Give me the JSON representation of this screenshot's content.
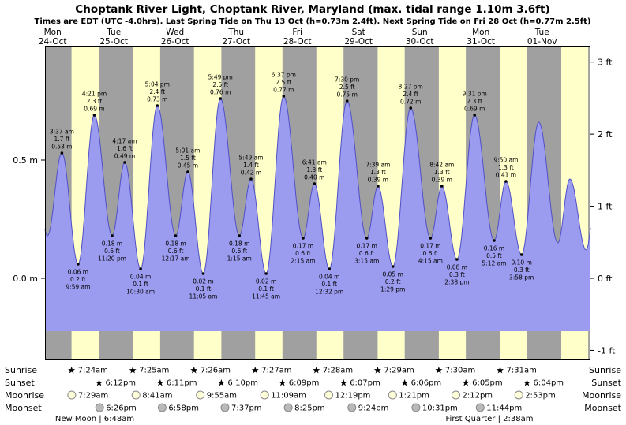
{
  "chart_data": {
    "type": "area",
    "title": "Choptank River Light, Choptank River, Maryland (max. tidal range 1.10m 3.6ft)",
    "subtitle": "Times are EDT (UTC -4.0hrs). Last Spring Tide on Thu 13 Oct (h=0.73m 2.4ft). Next Spring Tide on Fri 28 Oct (h=0.77m 2.5ft)",
    "days": [
      {
        "name": "Mon",
        "date": "24-Oct"
      },
      {
        "name": "Tue",
        "date": "25-Oct"
      },
      {
        "name": "Wed",
        "date": "26-Oct"
      },
      {
        "name": "Thu",
        "date": "27-Oct"
      },
      {
        "name": "Fri",
        "date": "28-Oct"
      },
      {
        "name": "Sat",
        "date": "29-Oct"
      },
      {
        "name": "Sun",
        "date": "30-Oct"
      },
      {
        "name": "Mon",
        "date": "31-Oct"
      },
      {
        "name": "Tue",
        "date": "01-Nov"
      }
    ],
    "y_axis_left": {
      "unit": "m",
      "ticks": [
        {
          "label": "0.5 m",
          "value_m": 0.5
        },
        {
          "label": "0.0 m",
          "value_m": 0
        }
      ]
    },
    "y_axis_right": {
      "unit": "ft",
      "ticks": [
        {
          "label": "3 ft",
          "value_ft": 3
        },
        {
          "label": "2 ft",
          "value_ft": 2
        },
        {
          "label": "1 ft",
          "value_ft": 1
        },
        {
          "label": "0 ft",
          "value_ft": 0
        },
        {
          "label": "-1 ft",
          "value_ft": -1
        }
      ]
    },
    "tide_extremes": [
      {
        "day": 0,
        "time": "3:37 am",
        "type": "high",
        "ft": "1.7 ft",
        "m": "0.53 m",
        "height_m": 0.53
      },
      {
        "day": 0,
        "time": "9:59 am",
        "type": "low",
        "ft": "0.2 ft",
        "m": "0.06 m",
        "height_m": 0.06
      },
      {
        "day": 0,
        "time": "4:21 pm",
        "type": "high",
        "ft": "2.3 ft",
        "m": "0.69 m",
        "height_m": 0.69
      },
      {
        "day": 0,
        "time": "11:20 pm",
        "type": "low",
        "ft": "0.6 ft",
        "m": "0.18 m",
        "height_m": 0.18
      },
      {
        "day": 1,
        "time": "4:17 am",
        "type": "high",
        "ft": "1.6 ft",
        "m": "0.49 m",
        "height_m": 0.49
      },
      {
        "day": 1,
        "time": "10:30 am",
        "type": "low",
        "ft": "0.1 ft",
        "m": "0.04 m",
        "height_m": 0.04
      },
      {
        "day": 1,
        "time": "5:04 pm",
        "type": "high",
        "ft": "2.4 ft",
        "m": "0.73 m",
        "height_m": 0.73
      },
      {
        "day": 2,
        "time": "12:17 am",
        "type": "low",
        "ft": "0.6 ft",
        "m": "0.18 m",
        "height_m": 0.18
      },
      {
        "day": 2,
        "time": "5:01 am",
        "type": "high",
        "ft": "1.5 ft",
        "m": "0.45 m",
        "height_m": 0.45
      },
      {
        "day": 2,
        "time": "11:05 am",
        "type": "low",
        "ft": "0.1 ft",
        "m": "0.02 m",
        "height_m": 0.02
      },
      {
        "day": 2,
        "time": "5:49 pm",
        "type": "high",
        "ft": "2.5 ft",
        "m": "0.76 m",
        "height_m": 0.76
      },
      {
        "day": 3,
        "time": "1:15 am",
        "type": "low",
        "ft": "0.6 ft",
        "m": "0.18 m",
        "height_m": 0.18
      },
      {
        "day": 3,
        "time": "5:49 am",
        "type": "high",
        "ft": "1.4 ft",
        "m": "0.42 m",
        "height_m": 0.42
      },
      {
        "day": 3,
        "time": "11:45 am",
        "type": "low",
        "ft": "0.1 ft",
        "m": "0.02 m",
        "height_m": 0.02
      },
      {
        "day": 3,
        "time": "6:37 pm",
        "type": "high",
        "ft": "2.5 ft",
        "m": "0.77 m",
        "height_m": 0.77
      },
      {
        "day": 4,
        "time": "2:15 am",
        "type": "low",
        "ft": "0.6 ft",
        "m": "0.17 m",
        "height_m": 0.17
      },
      {
        "day": 4,
        "time": "6:41 am",
        "type": "high",
        "ft": "1.3 ft",
        "m": "0.40 m",
        "height_m": 0.4
      },
      {
        "day": 4,
        "time": "12:32 pm",
        "type": "low",
        "ft": "0.1 ft",
        "m": "0.04 m",
        "height_m": 0.04
      },
      {
        "day": 4,
        "time": "7:30 pm",
        "type": "high",
        "ft": "2.5 ft",
        "m": "0.75 m",
        "height_m": 0.75
      },
      {
        "day": 5,
        "time": "3:15 am",
        "type": "low",
        "ft": "0.6 ft",
        "m": "0.17 m",
        "height_m": 0.17
      },
      {
        "day": 5,
        "time": "7:39 am",
        "type": "high",
        "ft": "1.3 ft",
        "m": "0.39 m",
        "height_m": 0.39
      },
      {
        "day": 5,
        "time": "1:29 pm",
        "type": "low",
        "ft": "0.2 ft",
        "m": "0.05 m",
        "height_m": 0.05
      },
      {
        "day": 5,
        "time": "8:27 pm",
        "type": "high",
        "ft": "2.4 ft",
        "m": "0.72 m",
        "height_m": 0.72
      },
      {
        "day": 6,
        "time": "4:15 am",
        "type": "low",
        "ft": "0.6 ft",
        "m": "0.17 m",
        "height_m": 0.17
      },
      {
        "day": 6,
        "time": "8:42 am",
        "type": "high",
        "ft": "1.3 ft",
        "m": "0.39 m",
        "height_m": 0.39
      },
      {
        "day": 6,
        "time": "2:38 pm",
        "type": "low",
        "ft": "0.3 ft",
        "m": "0.08 m",
        "height_m": 0.08
      },
      {
        "day": 6,
        "time": "9:31 pm",
        "type": "high",
        "ft": "2.3 ft",
        "m": "0.69 m",
        "height_m": 0.69
      },
      {
        "day": 7,
        "time": "5:12 am",
        "type": "low",
        "ft": "0.5 ft",
        "m": "0.16 m",
        "height_m": 0.16
      },
      {
        "day": 7,
        "time": "9:50 am",
        "type": "high",
        "ft": "1.3 ft",
        "m": "0.41 m",
        "height_m": 0.41
      },
      {
        "day": 7,
        "time": "3:58 pm",
        "type": "low",
        "ft": "0.3 ft",
        "m": "0.10 m",
        "height_m": 0.1
      }
    ],
    "curve_anchors_estimated": [
      {
        "t": -0.35,
        "m": 0.66
      },
      {
        "t": -0.085,
        "m": 0.18
      },
      {
        "t": 7.946,
        "m": 0.66
      },
      {
        "t": 8.257,
        "m": 0.15
      },
      {
        "t": 8.455,
        "m": 0.42
      },
      {
        "t": 8.72,
        "m": 0.12
      },
      {
        "t": 8.95,
        "m": 0.55
      }
    ],
    "colors": {
      "night_band": "#a0a0a0",
      "day_band": "#ffffc9",
      "tide_fill": "#9b9bf0",
      "tide_stroke": "#5050c8",
      "date_label": "#cc0000"
    }
  },
  "almanac": {
    "rows": [
      {
        "id": "sunrise",
        "label": "Sunrise",
        "icon": "star",
        "icon_color": "#e3c229",
        "events": [
          {
            "day": 0,
            "time": "7:24am"
          },
          {
            "day": 1,
            "time": "7:25am"
          },
          {
            "day": 2,
            "time": "7:26am"
          },
          {
            "day": 3,
            "time": "7:27am"
          },
          {
            "day": 4,
            "time": "7:28am"
          },
          {
            "day": 5,
            "time": "7:29am"
          },
          {
            "day": 6,
            "time": "7:30am"
          },
          {
            "day": 7,
            "time": "7:31am"
          }
        ]
      },
      {
        "id": "sunset",
        "label": "Sunset",
        "icon": "star",
        "icon_color": "#e85d1a",
        "events": [
          {
            "day": 0,
            "time": "6:12pm"
          },
          {
            "day": 1,
            "time": "6:11pm"
          },
          {
            "day": 2,
            "time": "6:10pm"
          },
          {
            "day": 3,
            "time": "6:09pm"
          },
          {
            "day": 4,
            "time": "6:07pm"
          },
          {
            "day": 5,
            "time": "6:06pm"
          },
          {
            "day": 6,
            "time": "6:05pm"
          },
          {
            "day": 7,
            "time": "6:04pm"
          }
        ]
      },
      {
        "id": "moonrise",
        "label": "Moonrise",
        "icon": "circle",
        "icon_color": "#ffffd9",
        "events": [
          {
            "day": 0,
            "time": "7:29am"
          },
          {
            "day": 1,
            "time": "8:41am"
          },
          {
            "day": 2,
            "time": "9:55am"
          },
          {
            "day": 3,
            "time": "11:09am"
          },
          {
            "day": 4,
            "time": "12:19pm"
          },
          {
            "day": 5,
            "time": "1:21pm"
          },
          {
            "day": 6,
            "time": "2:12pm"
          },
          {
            "day": 7,
            "time": "2:53pm"
          }
        ]
      },
      {
        "id": "moonset",
        "label": "Moonset",
        "icon": "circle",
        "icon_color": "#b9b9b9",
        "events": [
          {
            "day": 0,
            "time": "6:26pm"
          },
          {
            "day": 1,
            "time": "6:58pm"
          },
          {
            "day": 2,
            "time": "7:37pm"
          },
          {
            "day": 3,
            "time": "8:25pm"
          },
          {
            "day": 4,
            "time": "9:24pm"
          },
          {
            "day": 5,
            "time": "10:31pm"
          },
          {
            "day": 6,
            "time": "11:44pm"
          }
        ]
      }
    ],
    "phases": [
      {
        "name": "New Moon",
        "time": "6:48am"
      },
      {
        "name": "First Quarter",
        "time": "2:38am"
      }
    ]
  }
}
